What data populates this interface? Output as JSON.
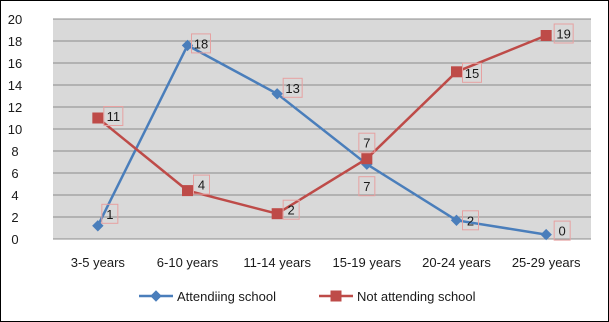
{
  "chart_data": {
    "type": "line",
    "title": "",
    "xlabel": "",
    "ylabel": "",
    "categories": [
      "3-5 years",
      "6-10 years",
      "11-14 years",
      "15-19 years",
      "20-24 years",
      "25-29 years"
    ],
    "series": [
      {
        "name": "Attendiing school",
        "values": [
          1.2,
          17.6,
          13.2,
          6.8,
          1.7,
          0.4
        ],
        "labels": [
          "1",
          "18",
          "13",
          "7",
          "2",
          "0"
        ],
        "color": "#4a7ebb",
        "marker": "diamond"
      },
      {
        "name": "Not attending school",
        "values": [
          11.0,
          4.4,
          2.3,
          7.3,
          15.2,
          18.5
        ],
        "labels": [
          "11",
          "4",
          "2",
          "7",
          "15",
          "19"
        ],
        "color": "#be4b48",
        "marker": "square"
      }
    ],
    "ylim": [
      0,
      20
    ],
    "yticks": [
      "0",
      "2",
      "4",
      "6",
      "8",
      "10",
      "12",
      "14",
      "16",
      "18",
      "20"
    ],
    "grid": true,
    "legend_position": "bottom",
    "plot_background": "#d9d9d9",
    "gridline_color": "#8c8c8c",
    "data_label_border_color": "#e6a1a1"
  }
}
